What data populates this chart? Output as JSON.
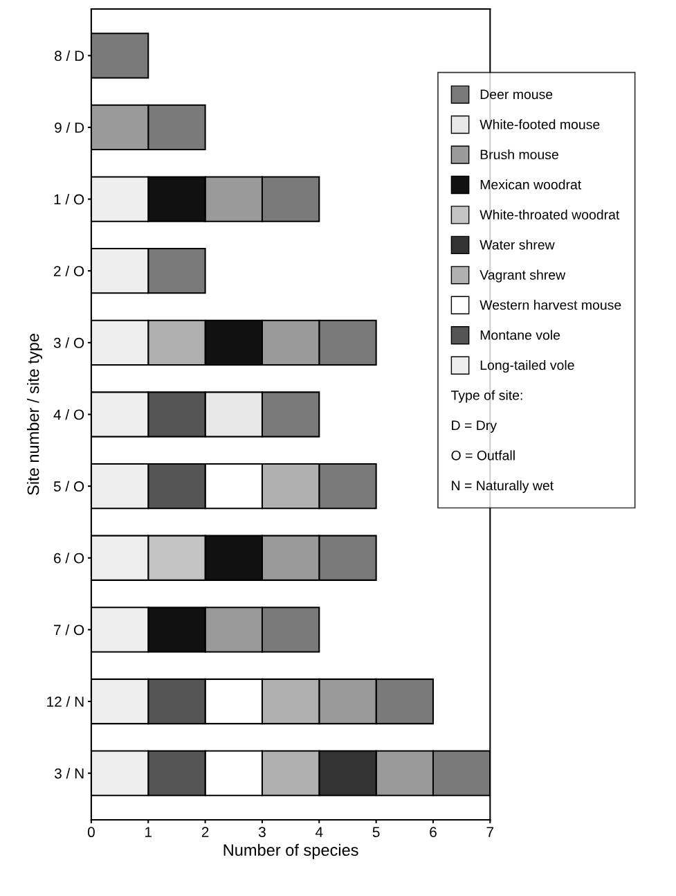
{
  "chart_data": {
    "type": "bar",
    "orientation": "horizontal",
    "xlabel": "Number of species",
    "ylabel": "Site number / site type",
    "categories": [
      "8 / D",
      "9 / D",
      "1 / O",
      "2 / O",
      "3 / O",
      "4 / O",
      "5 / O",
      "6 / O",
      "7 / O",
      "12 / N",
      "3 / N"
    ],
    "xlim": [
      0,
      7
    ],
    "xticks": [
      0,
      1,
      2,
      3,
      4,
      5,
      6,
      7
    ],
    "grid": false,
    "legend": "right",
    "series": [
      {
        "name": "Deer mouse",
        "color": "#7a7a7a",
        "values": [
          1,
          1,
          1,
          1,
          1,
          1,
          1,
          1,
          1,
          1,
          1
        ],
        "base": [
          0,
          1,
          3,
          1,
          4,
          3,
          4,
          4,
          3,
          5,
          6
        ]
      },
      {
        "name": "White-footed mouse",
        "color": "#e8e8e8",
        "values": [
          null,
          null,
          null,
          null,
          null,
          1,
          null,
          null,
          null,
          null,
          null
        ],
        "base": [
          null,
          null,
          null,
          null,
          null,
          2,
          null,
          null,
          null,
          null,
          null
        ]
      },
      {
        "name": "Brush mouse",
        "color": "#9a9a9a",
        "values": [
          null,
          1,
          1,
          null,
          1,
          null,
          null,
          1,
          1,
          1,
          1
        ],
        "base": [
          null,
          0,
          2,
          null,
          3,
          null,
          null,
          3,
          2,
          4,
          5
        ]
      },
      {
        "name": "Mexican woodrat",
        "color": "#111111",
        "values": [
          null,
          null,
          1,
          null,
          1,
          null,
          null,
          1,
          1,
          null,
          null
        ],
        "base": [
          null,
          null,
          1,
          null,
          2,
          null,
          null,
          2,
          1,
          null,
          null
        ]
      },
      {
        "name": "White-throated woodrat",
        "color": "#c4c4c4",
        "values": [
          null,
          null,
          null,
          null,
          null,
          null,
          null,
          1,
          null,
          null,
          null
        ],
        "base": [
          null,
          null,
          null,
          null,
          null,
          null,
          null,
          1,
          null,
          null,
          null
        ]
      },
      {
        "name": "Water shrew",
        "color": "#333333",
        "values": [
          null,
          null,
          null,
          null,
          null,
          null,
          null,
          null,
          null,
          null,
          1
        ],
        "base": [
          null,
          null,
          null,
          null,
          null,
          null,
          null,
          null,
          null,
          null,
          4
        ]
      },
      {
        "name": "Vagrant shrew",
        "color": "#b0b0b0",
        "values": [
          null,
          null,
          null,
          null,
          1,
          null,
          1,
          null,
          null,
          1,
          1
        ],
        "base": [
          null,
          null,
          null,
          null,
          1,
          null,
          3,
          null,
          null,
          3,
          3
        ]
      },
      {
        "name": "Western harvest mouse",
        "color": "#ffffff",
        "values": [
          null,
          null,
          null,
          null,
          null,
          null,
          1,
          null,
          null,
          1,
          1
        ],
        "base": [
          null,
          null,
          null,
          null,
          null,
          null,
          2,
          null,
          null,
          2,
          2
        ]
      },
      {
        "name": "Montane vole",
        "color": "#555555",
        "values": [
          null,
          null,
          null,
          null,
          null,
          1,
          1,
          null,
          null,
          1,
          1
        ],
        "base": [
          null,
          null,
          null,
          null,
          null,
          1,
          1,
          null,
          null,
          1,
          1
        ]
      },
      {
        "name": "Long-tailed vole",
        "color": "#eeeeee",
        "values": [
          null,
          null,
          1,
          1,
          1,
          1,
          1,
          1,
          1,
          1,
          1
        ],
        "base": [
          null,
          null,
          0,
          0,
          0,
          0,
          0,
          0,
          0,
          0,
          0
        ]
      }
    ],
    "annotations": [
      "Type of site:",
      "D = Dry",
      "O = Outfall",
      "N = Naturally wet"
    ]
  }
}
